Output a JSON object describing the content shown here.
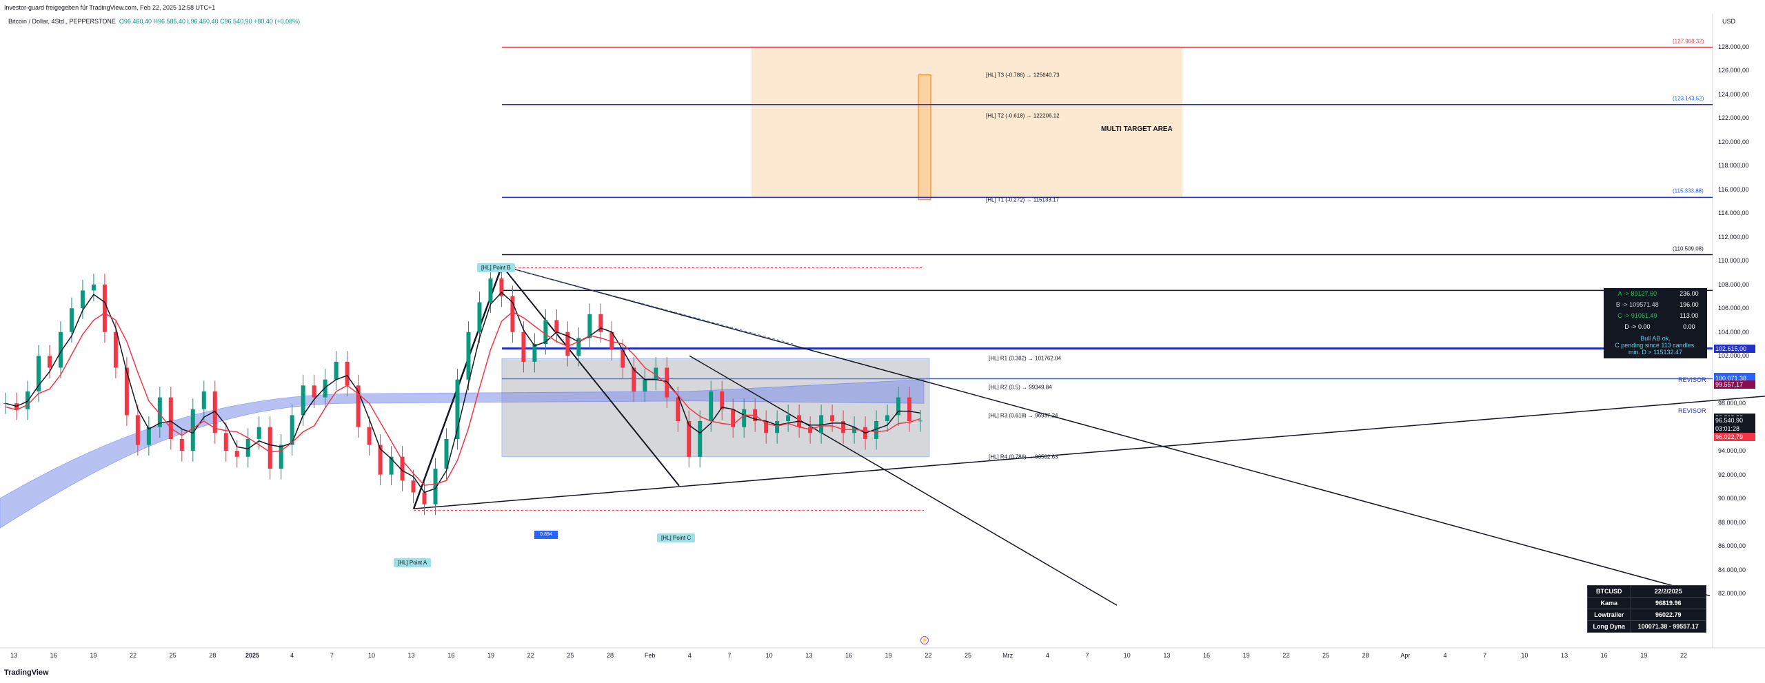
{
  "header": {
    "published": "Investor-guard freigegeben für TradingView.com, Feb 22, 2025 12:58 UTC+1",
    "symbol": "Bitcoin / Dollar, 4Std., PEPPERSTONE",
    "ohlc": "O96.460,40  H96.585,40  L96.460,40  C96.540,90  +80,40 (+0,08%)"
  },
  "footer": {
    "logo": "TradingView"
  },
  "axis": {
    "currency": "USD",
    "y_ticks": [
      "128.000,00",
      "126.000,00",
      "124.000,00",
      "122.000,00",
      "120.000,00",
      "118.000,00",
      "116.000,00",
      "114.000,00",
      "112.000,00",
      "110.000,00",
      "108.000,00",
      "106.000,00",
      "104.000,00",
      "102.000,00",
      "100.000,00",
      "98.000,00",
      "96.000,00",
      "94.000,00",
      "92.000,00",
      "90.000,00",
      "88.000,00",
      "86.000,00",
      "84.000,00",
      "82.000,00"
    ],
    "y_values": [
      128000,
      126000,
      124000,
      122000,
      120000,
      118000,
      116000,
      114000,
      112000,
      110000,
      108000,
      106000,
      104000,
      102000,
      100000,
      98000,
      96000,
      94000,
      92000,
      90000,
      88000,
      86000,
      84000,
      82000
    ],
    "x_ticks": [
      {
        "label": "13",
        "bold": false
      },
      {
        "label": "16",
        "bold": false
      },
      {
        "label": "19",
        "bold": false
      },
      {
        "label": "22",
        "bold": false
      },
      {
        "label": "25",
        "bold": false
      },
      {
        "label": "28",
        "bold": false
      },
      {
        "label": "2025",
        "bold": true
      },
      {
        "label": "4",
        "bold": false
      },
      {
        "label": "7",
        "bold": false
      },
      {
        "label": "10",
        "bold": false
      },
      {
        "label": "13",
        "bold": false
      },
      {
        "label": "16",
        "bold": false
      },
      {
        "label": "19",
        "bold": false
      },
      {
        "label": "22",
        "bold": false
      },
      {
        "label": "25",
        "bold": false
      },
      {
        "label": "28",
        "bold": false
      },
      {
        "label": "Feb",
        "bold": false
      },
      {
        "label": "4",
        "bold": false
      },
      {
        "label": "7",
        "bold": false
      },
      {
        "label": "10",
        "bold": false
      },
      {
        "label": "13",
        "bold": false
      },
      {
        "label": "16",
        "bold": false
      },
      {
        "label": "19",
        "bold": false
      },
      {
        "label": "22",
        "bold": false
      },
      {
        "label": "25",
        "bold": false
      },
      {
        "label": "Mrz",
        "bold": false
      },
      {
        "label": "4",
        "bold": false
      },
      {
        "label": "7",
        "bold": false
      },
      {
        "label": "10",
        "bold": false
      },
      {
        "label": "13",
        "bold": false
      },
      {
        "label": "16",
        "bold": false
      },
      {
        "label": "19",
        "bold": false
      },
      {
        "label": "22",
        "bold": false
      },
      {
        "label": "25",
        "bold": false
      },
      {
        "label": "28",
        "bold": false
      },
      {
        "label": "Apr",
        "bold": false
      },
      {
        "label": "4",
        "bold": false
      },
      {
        "label": "7",
        "bold": false
      },
      {
        "label": "10",
        "bold": false
      },
      {
        "label": "13",
        "bold": false
      },
      {
        "label": "16",
        "bold": false
      },
      {
        "label": "19",
        "bold": false
      },
      {
        "label": "22",
        "bold": false
      }
    ]
  },
  "price_tags": [
    {
      "text": "102.615,00",
      "value": 102615,
      "color": "#2130c9"
    },
    {
      "text": "100.218,00",
      "value": 100218,
      "color": "#2962ff"
    },
    {
      "text": "100.071,38",
      "value": 100071,
      "color": "#2962ff"
    },
    {
      "text": "99.557,17",
      "value": 99557,
      "color": "#880e4f"
    },
    {
      "text": "96.819,96",
      "value": 96820,
      "color": "#131722"
    },
    {
      "text": "96.540,90",
      "value": 96541,
      "color": "#131722"
    },
    {
      "text": "03:01:28",
      "value": 95890,
      "color": "#131722"
    },
    {
      "text": "96.022,79",
      "value": 95150,
      "color": "#f23645"
    }
  ],
  "levels_right": [
    {
      "text": "(127.968,32)",
      "value": 127968,
      "color": "#f23645"
    },
    {
      "text": "(123.143,52)",
      "value": 123143,
      "color": "#2962ff"
    },
    {
      "text": "(115.333,88)",
      "value": 115334,
      "color": "#2962ff"
    },
    {
      "text": "(110.509,08)",
      "value": 110509,
      "color": "#131722"
    }
  ],
  "fib_labels": [
    {
      "text": "[HL] T3 (-0.786) → 125640.73",
      "value": 125640
    },
    {
      "text": "[HL] T2 (-0.618) → 122206.12",
      "value": 122206
    },
    {
      "text": "[HL] T1 (-0.272) → 115133.17",
      "value": 115133
    },
    {
      "text": "[HL] R1 (0.382) → 101762.04",
      "value": 101762
    },
    {
      "text": "[HL] R2 (0.5) → 99349.84",
      "value": 99349
    },
    {
      "text": "[HL] R3 (0.618) → 96937.24",
      "value": 96937
    },
    {
      "text": "[HL] R4 (0.786) → 93502.63",
      "value": 93502
    }
  ],
  "points": {
    "a": "[HL] Point  A",
    "b": "[HL] Point  B",
    "c": "[HL] Point  C"
  },
  "target_area": "MULTI TARGET AREA",
  "revisor": [
    "REVISOR",
    "REVISOR"
  ],
  "small_box_label": "0.894",
  "table1": {
    "rows": [
      {
        "label": "A -> 89127.60",
        "value": "236.00",
        "color": "#22c55e"
      },
      {
        "label": "B -> 109571.48",
        "value": "196.00",
        "color": "#d1d4dc"
      },
      {
        "label": "C -> 91061.49",
        "value": "113.00",
        "color": "#22c55e"
      },
      {
        "label": "D -> 0.00",
        "value": "0.00",
        "color": "#ffffff"
      }
    ],
    "note1": "Bull AB ok.",
    "note2": "C pending since 113 candles.",
    "note3": "min. D > 115132.47"
  },
  "table2": {
    "rows": [
      {
        "label": "BTCUSD",
        "value": "22/2/2025"
      },
      {
        "label": "Kama",
        "value": "96819.96"
      },
      {
        "label": "Lowtrailer",
        "value": "96022.79"
      },
      {
        "label": "Long Dyna",
        "value": "100071.38 - 99557.17"
      }
    ]
  },
  "chart_data": {
    "type": "line",
    "title": "",
    "xlabel": "",
    "ylabel": "",
    "ylim": [
      81000,
      130000
    ],
    "grid": false,
    "series": [
      {
        "values": [
          98000,
          97500,
          99000,
          102000,
          101000,
          104000,
          106000,
          107500,
          108000,
          104000,
          101000,
          97000,
          94500,
          96000,
          98500,
          95000,
          94000,
          97500,
          99000,
          95500,
          94000,
          93500,
          95000,
          96000,
          92500,
          94500,
          97000,
          99500,
          98500,
          100000,
          101500,
          99500,
          96000,
          94500,
          92000,
          93500,
          91500,
          90500,
          89500,
          92500,
          95000,
          100000,
          104000,
          106500,
          108500,
          107000,
          104000,
          101500,
          103000,
          105000,
          104000,
          102000,
          103500,
          105500,
          104000,
          102500,
          101000,
          99000,
          100000,
          101000,
          98500,
          96500,
          93500,
          96500,
          99000,
          97500,
          96000,
          97500,
          96500,
          95500,
          96500,
          97000,
          96000,
          95500,
          97000,
          96500,
          95500,
          96000,
          95000,
          96500,
          97000,
          98500,
          96500,
          96540
        ]
      }
    ]
  }
}
